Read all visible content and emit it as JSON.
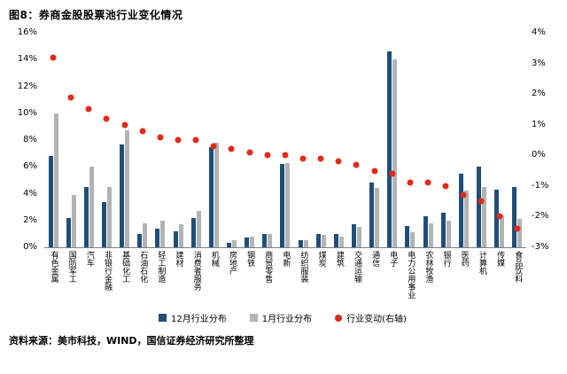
{
  "title": "图8：券商金股股票池行业变化情况",
  "source": "资料来源：美市科技，WIND，国信证券经济研究所整理",
  "legend": {
    "dec": "12月行业分布",
    "jan": "1月行业分布",
    "change": "行业变动(右轴)"
  },
  "colors": {
    "dec_bar": "#1f4e79",
    "jan_bar": "#b3b3b3",
    "change_dot": "#e02a1a",
    "axis_line": "#7f7f7f"
  },
  "chart_data": {
    "type": "bar",
    "title": "券商金股股票池行业变化情况",
    "grid": false,
    "legend_position": "bottom",
    "categories": [
      "有色金属",
      "国防军工",
      "汽车",
      "非银行金融",
      "基础化工",
      "石油石化",
      "轻工制造",
      "建材",
      "消费者服务",
      "机械",
      "房地产",
      "钢铁",
      "商贸零售",
      "电新",
      "纺织服装",
      "煤炭",
      "建筑",
      "交通运输",
      "通信",
      "电子",
      "电力公用事业",
      "农林牧渔",
      "银行",
      "医药",
      "计算机",
      "传媒",
      "食品饮料"
    ],
    "series": [
      {
        "name": "12月行业分布",
        "type": "bar",
        "axis": "left",
        "values": [
          6.8,
          2.2,
          4.5,
          3.4,
          7.7,
          1.0,
          1.4,
          1.2,
          2.2,
          7.5,
          0.3,
          0.7,
          1.0,
          6.2,
          0.5,
          1.0,
          1.0,
          1.7,
          4.8,
          14.6,
          1.6,
          2.3,
          2.6,
          5.5,
          6.0,
          4.3,
          4.5
        ]
      },
      {
        "name": "1月行业分布",
        "type": "bar",
        "axis": "left",
        "values": [
          10.0,
          3.9,
          6.0,
          4.5,
          8.7,
          1.8,
          2.0,
          1.7,
          2.7,
          7.8,
          0.5,
          0.8,
          1.0,
          6.3,
          0.5,
          0.9,
          0.8,
          1.5,
          4.4,
          14.0,
          1.1,
          1.8,
          2.0,
          4.2,
          4.5,
          2.4,
          2.1
        ]
      },
      {
        "name": "行业变动(右轴)",
        "type": "scatter",
        "axis": "right",
        "values": [
          3.2,
          1.9,
          1.5,
          1.2,
          1.0,
          0.8,
          0.6,
          0.5,
          0.5,
          0.3,
          0.2,
          0.1,
          0.0,
          0.0,
          -0.1,
          -0.1,
          -0.2,
          -0.3,
          -0.5,
          -0.6,
          -0.9,
          -0.9,
          -1.0,
          -1.3,
          -1.5,
          -2.0,
          -2.4
        ]
      }
    ],
    "left_axis": {
      "min": 0,
      "max": 16,
      "ticks": [
        "16%",
        "14%",
        "12%",
        "10%",
        "8%",
        "6%",
        "4%",
        "2%",
        "0%"
      ]
    },
    "right_axis": {
      "min": -3,
      "max": 4,
      "ticks": [
        "4%",
        "3%",
        "2%",
        "1%",
        "0%",
        "-1%",
        "-2%",
        "-3%"
      ]
    }
  }
}
